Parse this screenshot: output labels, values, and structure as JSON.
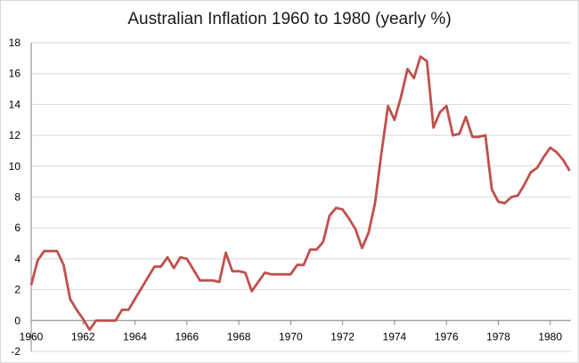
{
  "chart_data": {
    "type": "line",
    "title": "Australian Inflation 1960 to 1980 (yearly %)",
    "xlabel": "",
    "ylabel": "",
    "xlim": [
      1960,
      1980.8
    ],
    "ylim": [
      -2,
      18
    ],
    "grid": true,
    "legend": "none",
    "x_ticks": [
      "1960",
      "1962",
      "1964",
      "1966",
      "1968",
      "1970",
      "1972",
      "1974",
      "1976",
      "1978",
      "1980"
    ],
    "y_ticks": [
      "-2",
      "0",
      "2",
      "4",
      "6",
      "8",
      "10",
      "12",
      "14",
      "16",
      "18"
    ],
    "series_color": "#c0504d",
    "x": [
      1960.0,
      1960.25,
      1960.5,
      1960.75,
      1961.0,
      1961.25,
      1961.5,
      1961.75,
      1962.0,
      1962.25,
      1962.5,
      1962.75,
      1963.0,
      1963.25,
      1963.5,
      1963.75,
      1964.0,
      1964.25,
      1964.5,
      1964.75,
      1965.0,
      1965.25,
      1965.5,
      1965.75,
      1966.0,
      1966.25,
      1966.5,
      1966.75,
      1967.0,
      1967.25,
      1967.5,
      1967.75,
      1968.0,
      1968.25,
      1968.5,
      1968.75,
      1969.0,
      1969.25,
      1969.5,
      1969.75,
      1970.0,
      1970.25,
      1970.5,
      1970.75,
      1971.0,
      1971.25,
      1971.5,
      1971.75,
      1972.0,
      1972.25,
      1972.5,
      1972.75,
      1973.0,
      1973.25,
      1973.5,
      1973.75,
      1974.0,
      1974.25,
      1974.5,
      1974.75,
      1975.0,
      1975.25,
      1975.5,
      1975.75,
      1976.0,
      1976.25,
      1976.5,
      1976.75,
      1977.0,
      1977.25,
      1977.5,
      1977.75,
      1978.0,
      1978.25,
      1978.5,
      1978.75,
      1979.0,
      1979.25,
      1979.5,
      1979.75,
      1980.0,
      1980.25,
      1980.5,
      1980.75
    ],
    "values": [
      2.3,
      3.9,
      4.5,
      4.5,
      4.5,
      3.6,
      1.4,
      0.7,
      0.1,
      -0.6,
      0.0,
      0.0,
      0.0,
      0.0,
      0.7,
      0.7,
      1.4,
      2.1,
      2.8,
      3.5,
      3.5,
      4.1,
      3.4,
      4.1,
      4.0,
      3.3,
      2.6,
      2.6,
      2.6,
      2.5,
      4.4,
      3.2,
      3.2,
      3.1,
      1.9,
      2.5,
      3.1,
      3.0,
      3.0,
      3.0,
      3.0,
      3.6,
      3.6,
      4.6,
      4.6,
      5.1,
      6.8,
      7.3,
      7.2,
      6.6,
      5.9,
      4.7,
      5.7,
      7.6,
      10.9,
      13.9,
      13.0,
      14.5,
      16.3,
      15.7,
      17.1,
      16.8,
      12.5,
      13.5,
      13.9,
      12.0,
      12.1,
      13.2,
      11.9,
      11.9,
      12.0,
      8.5,
      7.7,
      7.6,
      8.0,
      8.1,
      8.8,
      9.6,
      9.9,
      10.6,
      11.2,
      10.9,
      10.4,
      9.7
    ]
  }
}
